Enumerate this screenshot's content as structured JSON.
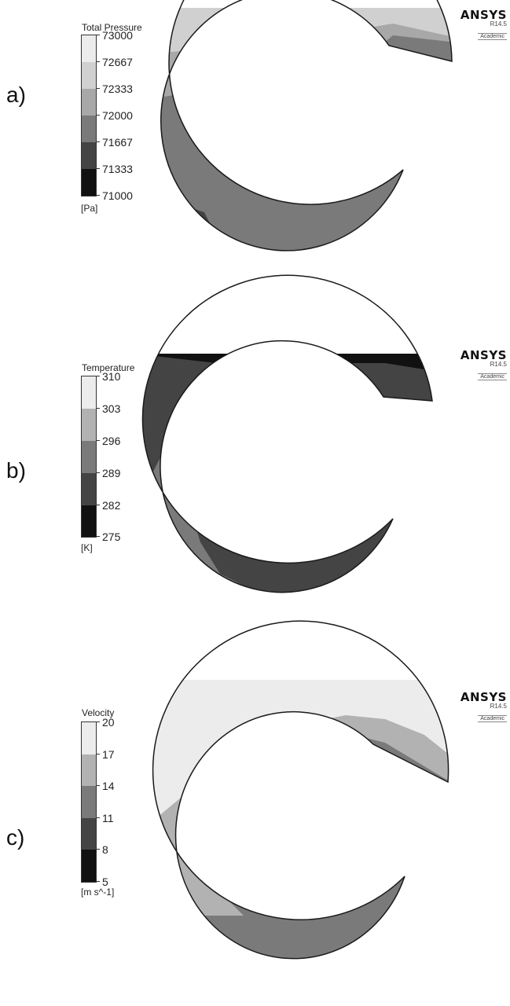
{
  "colors": {
    "band_1": "#111111",
    "band_2": "#3a3a3a",
    "band_3": "#5f5f5f",
    "band_4": "#858585",
    "band_5": "#b2b2b2",
    "band_6": "#ececec",
    "outline": "#1a1a1a"
  },
  "logo": {
    "brand": "ANSYS",
    "version": "R14.5",
    "edition": "Academic"
  },
  "panels": [
    {
      "letter": "a)",
      "legend": {
        "title": "Total Pressure",
        "unit": "[Pa]",
        "ticks": [
          "73000",
          "72667",
          "72333",
          "72000",
          "71667",
          "71333",
          "71000"
        ]
      }
    },
    {
      "letter": "b)",
      "legend": {
        "title": "Temperature",
        "unit": "[K]",
        "ticks": [
          "310",
          "303",
          "296",
          "289",
          "282",
          "275"
        ]
      }
    },
    {
      "letter": "c)",
      "legend": {
        "title": "Velocity",
        "unit": "[m s^-1]",
        "ticks": [
          "20",
          "17",
          "14",
          "11",
          "8",
          "5"
        ]
      }
    }
  ]
}
